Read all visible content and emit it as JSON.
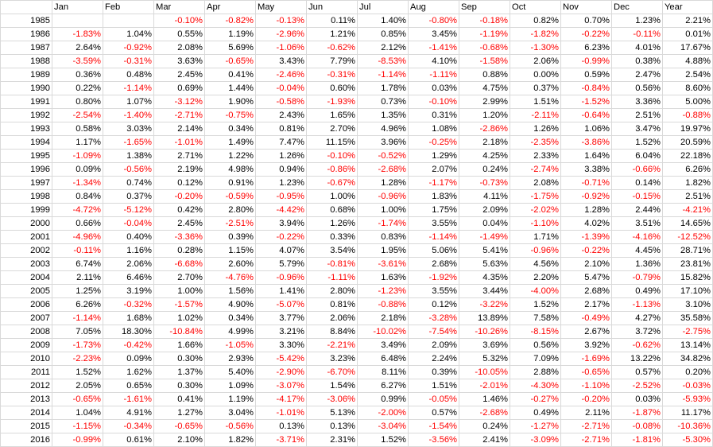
{
  "columns": [
    "",
    "Jan",
    "Feb",
    "Mar",
    "Apr",
    "May",
    "Jun",
    "Jul",
    "Aug",
    "Sep",
    "Oct",
    "Nov",
    "Dec",
    "Year"
  ],
  "colors": {
    "negative": "#ff0000",
    "positive": "#000000",
    "gridline": "#d9d9d9"
  },
  "rows": [
    [
      "1985",
      "",
      "",
      "-0.10%",
      "-0.82%",
      "-0.13%",
      "0.11%",
      "1.40%",
      "-0.80%",
      "-0.18%",
      "0.82%",
      "0.70%",
      "1.23%",
      "2.21%"
    ],
    [
      "1986",
      "-1.83%",
      "1.04%",
      "0.55%",
      "1.19%",
      "-2.96%",
      "1.21%",
      "0.85%",
      "3.45%",
      "-1.19%",
      "-1.82%",
      "-0.22%",
      "-0.11%",
      "0.01%"
    ],
    [
      "1987",
      "2.64%",
      "-0.92%",
      "2.08%",
      "5.69%",
      "-1.06%",
      "-0.62%",
      "2.12%",
      "-1.41%",
      "-0.68%",
      "-1.30%",
      "6.23%",
      "4.01%",
      "17.67%"
    ],
    [
      "1988",
      "-3.59%",
      "-0.31%",
      "3.63%",
      "-0.65%",
      "3.43%",
      "7.79%",
      "-8.53%",
      "4.10%",
      "-1.58%",
      "2.06%",
      "-0.99%",
      "0.38%",
      "4.88%"
    ],
    [
      "1989",
      "0.36%",
      "0.48%",
      "2.45%",
      "0.41%",
      "-2.46%",
      "-0.31%",
      "-1.14%",
      "-1.11%",
      "0.88%",
      "0.00%",
      "0.59%",
      "2.47%",
      "2.54%"
    ],
    [
      "1990",
      "0.22%",
      "-1.14%",
      "0.69%",
      "1.44%",
      "-0.04%",
      "0.60%",
      "1.78%",
      "0.03%",
      "4.75%",
      "0.37%",
      "-0.84%",
      "0.56%",
      "8.60%"
    ],
    [
      "1991",
      "0.80%",
      "1.07%",
      "-3.12%",
      "1.90%",
      "-0.58%",
      "-1.93%",
      "0.73%",
      "-0.10%",
      "2.99%",
      "1.51%",
      "-1.52%",
      "3.36%",
      "5.00%"
    ],
    [
      "1992",
      "-2.54%",
      "-1.40%",
      "-2.71%",
      "-0.75%",
      "2.43%",
      "1.65%",
      "1.35%",
      "0.31%",
      "1.20%",
      "-2.11%",
      "-0.64%",
      "2.51%",
      "-0.88%"
    ],
    [
      "1993",
      "0.58%",
      "3.03%",
      "2.14%",
      "0.34%",
      "0.81%",
      "2.70%",
      "4.96%",
      "1.08%",
      "-2.86%",
      "1.26%",
      "1.06%",
      "3.47%",
      "19.97%"
    ],
    [
      "1994",
      "1.17%",
      "-1.65%",
      "-1.01%",
      "1.49%",
      "7.47%",
      "11.15%",
      "3.96%",
      "-0.25%",
      "2.18%",
      "-2.35%",
      "-3.86%",
      "1.52%",
      "20.59%"
    ],
    [
      "1995",
      "-1.09%",
      "1.38%",
      "2.71%",
      "1.22%",
      "1.26%",
      "-0.10%",
      "-0.52%",
      "1.29%",
      "4.25%",
      "2.33%",
      "1.64%",
      "6.04%",
      "22.18%"
    ],
    [
      "1996",
      "0.09%",
      "-0.56%",
      "2.19%",
      "4.98%",
      "0.94%",
      "-0.86%",
      "-2.68%",
      "2.07%",
      "0.24%",
      "-2.74%",
      "3.38%",
      "-0.66%",
      "6.26%"
    ],
    [
      "1997",
      "-1.34%",
      "0.74%",
      "0.12%",
      "0.91%",
      "1.23%",
      "-0.67%",
      "1.28%",
      "-1.17%",
      "-0.73%",
      "2.08%",
      "-0.71%",
      "0.14%",
      "1.82%"
    ],
    [
      "1998",
      "0.84%",
      "0.37%",
      "-0.20%",
      "-0.59%",
      "-0.95%",
      "1.00%",
      "-0.96%",
      "1.83%",
      "4.11%",
      "-1.75%",
      "-0.92%",
      "-0.15%",
      "2.51%"
    ],
    [
      "1999",
      "-4.72%",
      "-5.12%",
      "0.42%",
      "2.80%",
      "-4.42%",
      "0.68%",
      "1.00%",
      "1.75%",
      "2.09%",
      "-2.02%",
      "1.28%",
      "2.44%",
      "-4.21%"
    ],
    [
      "2000",
      "0.66%",
      "-0.04%",
      "2.45%",
      "-2.51%",
      "3.94%",
      "1.26%",
      "-1.74%",
      "3.55%",
      "0.04%",
      "-1.10%",
      "4.02%",
      "3.51%",
      "14.65%"
    ],
    [
      "2001",
      "-4.96%",
      "0.40%",
      "-3.36%",
      "0.39%",
      "-0.22%",
      "0.33%",
      "0.83%",
      "-1.14%",
      "-1.49%",
      "1.71%",
      "-1.39%",
      "-4.16%",
      "-12.52%"
    ],
    [
      "2002",
      "-0.11%",
      "1.16%",
      "0.28%",
      "1.15%",
      "4.07%",
      "3.54%",
      "1.95%",
      "5.06%",
      "5.41%",
      "-0.96%",
      "-0.22%",
      "4.45%",
      "28.71%"
    ],
    [
      "2003",
      "6.74%",
      "2.06%",
      "-6.68%",
      "2.60%",
      "5.79%",
      "-0.81%",
      "-3.61%",
      "2.68%",
      "5.63%",
      "4.56%",
      "2.10%",
      "1.36%",
      "23.81%"
    ],
    [
      "2004",
      "2.11%",
      "6.46%",
      "2.70%",
      "-4.76%",
      "-0.96%",
      "-1.11%",
      "1.63%",
      "-1.92%",
      "4.35%",
      "2.20%",
      "5.47%",
      "-0.79%",
      "15.82%"
    ],
    [
      "2005",
      "1.25%",
      "3.19%",
      "1.00%",
      "1.56%",
      "1.41%",
      "2.80%",
      "-1.23%",
      "3.55%",
      "3.44%",
      "-4.00%",
      "2.68%",
      "0.49%",
      "17.10%"
    ],
    [
      "2006",
      "6.26%",
      "-0.32%",
      "-1.57%",
      "4.90%",
      "-5.07%",
      "0.81%",
      "-0.88%",
      "0.12%",
      "-3.22%",
      "1.52%",
      "2.17%",
      "-1.13%",
      "3.10%"
    ],
    [
      "2007",
      "-1.14%",
      "1.68%",
      "1.02%",
      "0.34%",
      "3.77%",
      "2.06%",
      "2.18%",
      "-3.28%",
      "13.89%",
      "7.58%",
      "-0.49%",
      "4.27%",
      "35.58%"
    ],
    [
      "2008",
      "7.05%",
      "18.30%",
      "-10.84%",
      "4.99%",
      "3.21%",
      "8.84%",
      "-10.02%",
      "-7.54%",
      "-10.26%",
      "-8.15%",
      "2.67%",
      "3.72%",
      "-2.75%"
    ],
    [
      "2009",
      "-1.73%",
      "-0.42%",
      "1.66%",
      "-1.05%",
      "3.30%",
      "-2.21%",
      "3.49%",
      "2.09%",
      "3.69%",
      "0.56%",
      "3.92%",
      "-0.62%",
      "13.14%"
    ],
    [
      "2010",
      "-2.23%",
      "0.09%",
      "0.30%",
      "2.93%",
      "-5.42%",
      "3.23%",
      "6.48%",
      "2.24%",
      "5.32%",
      "7.09%",
      "-1.69%",
      "13.22%",
      "34.82%"
    ],
    [
      "2011",
      "1.52%",
      "1.62%",
      "1.37%",
      "5.40%",
      "-2.90%",
      "-6.70%",
      "8.11%",
      "0.39%",
      "-10.05%",
      "2.88%",
      "-0.65%",
      "0.57%",
      "0.20%"
    ],
    [
      "2012",
      "2.05%",
      "0.65%",
      "0.30%",
      "1.09%",
      "-3.07%",
      "1.54%",
      "6.27%",
      "1.51%",
      "-2.01%",
      "-4.30%",
      "-1.10%",
      "-2.52%",
      "-0.03%"
    ],
    [
      "2013",
      "-0.65%",
      "-1.61%",
      "0.41%",
      "1.19%",
      "-4.17%",
      "-3.06%",
      "0.99%",
      "-0.05%",
      "1.46%",
      "-0.27%",
      "-0.20%",
      "0.03%",
      "-5.93%"
    ],
    [
      "2014",
      "1.04%",
      "4.91%",
      "1.27%",
      "3.04%",
      "-1.01%",
      "5.13%",
      "-2.00%",
      "0.57%",
      "-2.68%",
      "0.49%",
      "2.11%",
      "-1.87%",
      "11.17%"
    ],
    [
      "2015",
      "-1.15%",
      "-0.34%",
      "-0.65%",
      "-0.56%",
      "0.13%",
      "0.13%",
      "-3.04%",
      "-1.54%",
      "0.24%",
      "-1.27%",
      "-2.71%",
      "-0.08%",
      "-10.36%"
    ],
    [
      "2016",
      "-0.99%",
      "0.61%",
      "2.10%",
      "1.82%",
      "-3.71%",
      "2.31%",
      "1.52%",
      "-3.56%",
      "2.41%",
      "-3.09%",
      "-2.71%",
      "-1.81%",
      "-5.30%"
    ]
  ]
}
